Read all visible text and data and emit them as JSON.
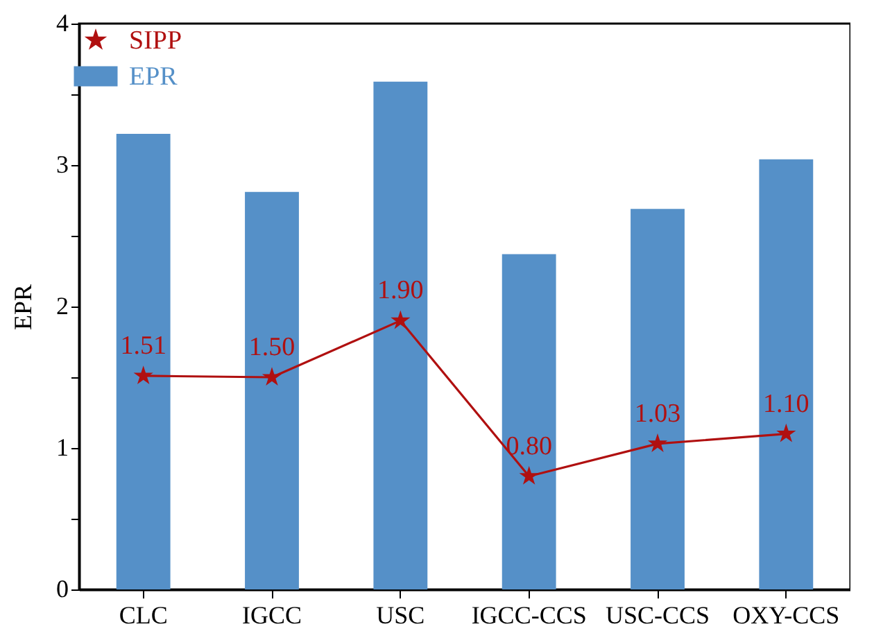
{
  "chart_data": {
    "type": "bar",
    "ylabel": "EPR",
    "categories": [
      "CLC",
      "IGCC",
      "USC",
      "IGCC-CCS",
      "USC-CCS",
      "OXY-CCS"
    ],
    "series": [
      {
        "name": "EPR",
        "color": "#5590c8",
        "values": [
          3.22,
          2.81,
          3.59,
          2.37,
          2.69,
          3.04
        ]
      },
      {
        "name": "SIPP",
        "type": "line",
        "color": "#b01010",
        "values": [
          1.51,
          1.5,
          1.9,
          0.8,
          1.03,
          1.1
        ],
        "value_labels": [
          "1.51",
          "1.50",
          "1.90",
          "0.80",
          "1.03",
          "1.10"
        ]
      }
    ],
    "ylim": [
      0,
      4
    ],
    "yticks": [
      0,
      {
        "value": 0.5,
        "label": null
      },
      1,
      {
        "value": 1.5,
        "label": null
      },
      2,
      {
        "value": 2.5,
        "label": null
      },
      3,
      {
        "value": 3.5,
        "label": null
      },
      4
    ],
    "grid": false,
    "legend": "top left",
    "marker": "star",
    "line_style": "solid"
  }
}
